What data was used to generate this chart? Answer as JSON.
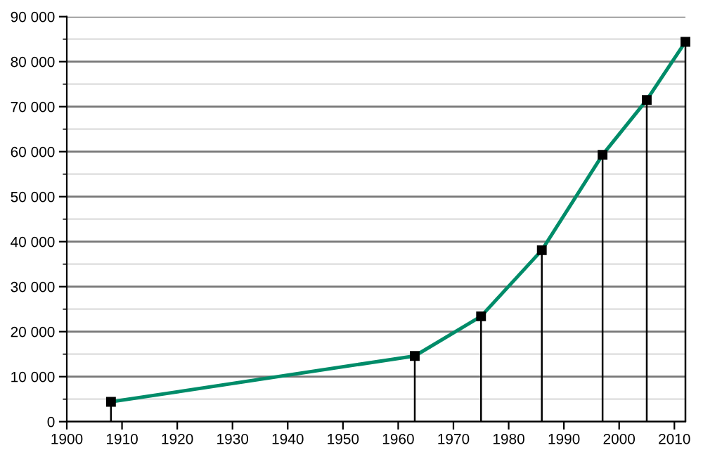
{
  "chart_data": {
    "type": "line",
    "x": [
      1908,
      1963,
      1975,
      1986,
      1997,
      2005,
      2012
    ],
    "series": [
      {
        "color": "#008c69",
        "marker": "none",
        "values": [
          4400,
          14600,
          23400,
          38100,
          59300,
          71500,
          84400
        ]
      },
      {
        "type": "lollipop",
        "color": "#000000",
        "marker": "square",
        "values": [
          4400,
          14600,
          23400,
          38100,
          59300,
          71500,
          84400
        ]
      }
    ],
    "line_style": "solid",
    "grid": "y",
    "xlim": [
      1900,
      2012
    ],
    "xticks": [
      1900,
      1910,
      1920,
      1930,
      1940,
      1950,
      1960,
      1970,
      1980,
      1990,
      2000,
      2010
    ],
    "ylim": [
      0,
      90000
    ],
    "yticks": [
      0,
      {
        "value": 10000,
        "label": "10 000"
      },
      {
        "value": 20000,
        "label": "20 000"
      },
      {
        "value": 30000,
        "label": "30 000"
      },
      {
        "value": 40000,
        "label": "40 000"
      },
      {
        "value": 50000,
        "label": "50 000"
      },
      {
        "value": 60000,
        "label": "60 000"
      },
      {
        "value": 70000,
        "label": "70 000"
      },
      {
        "value": 80000,
        "label": "80 000"
      },
      {
        "value": 90000,
        "label": "90 000"
      }
    ]
  }
}
